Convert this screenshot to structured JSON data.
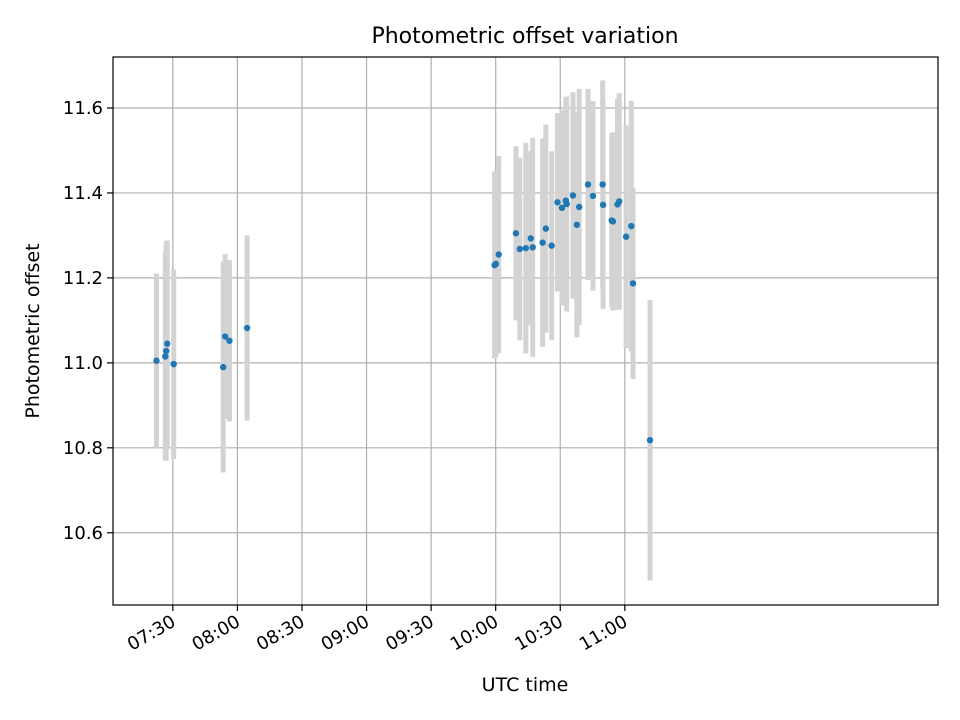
{
  "chart_data": {
    "type": "scatter",
    "title": "Photometric offset variation",
    "xlabel": "UTC time",
    "ylabel": "Photometric offset",
    "grid": true,
    "xlim_minutes": [
      422.2,
      805.5
    ],
    "ylim": [
      10.43,
      11.72
    ],
    "x_ticks": [
      {
        "minutes": 450,
        "label": "07:30"
      },
      {
        "minutes": 480,
        "label": "08:00"
      },
      {
        "minutes": 510,
        "label": "08:30"
      },
      {
        "minutes": 540,
        "label": "09:00"
      },
      {
        "minutes": 570,
        "label": "09:30"
      },
      {
        "minutes": 600,
        "label": "10:00"
      },
      {
        "minutes": 630,
        "label": "10:30"
      },
      {
        "minutes": 660,
        "label": "11:00"
      }
    ],
    "y_ticks": [
      {
        "value": 10.6,
        "label": "10.6"
      },
      {
        "value": 10.8,
        "label": "10.8"
      },
      {
        "value": 11.0,
        "label": "11.0"
      },
      {
        "value": 11.2,
        "label": "11.2"
      },
      {
        "value": 11.4,
        "label": "11.4"
      },
      {
        "value": 11.6,
        "label": "11.6"
      }
    ],
    "marker_color": "#1f77b4",
    "errorbar_color": "#d3d3d3",
    "points": [
      {
        "t": 442.4,
        "y": 11.005,
        "err": 0.205
      },
      {
        "t": 446.5,
        "y": 11.015,
        "err": 0.245
      },
      {
        "t": 446.9,
        "y": 11.028,
        "err": 0.258
      },
      {
        "t": 447.4,
        "y": 11.045,
        "err": 0.243
      },
      {
        "t": 450.4,
        "y": 10.997,
        "err": 0.223
      },
      {
        "t": 473.4,
        "y": 10.99,
        "err": 0.248
      },
      {
        "t": 474.3,
        "y": 11.062,
        "err": 0.194
      },
      {
        "t": 476.3,
        "y": 11.052,
        "err": 0.19
      },
      {
        "t": 484.5,
        "y": 11.082,
        "err": 0.218
      },
      {
        "t": 599.5,
        "y": 11.23,
        "err": 0.22
      },
      {
        "t": 600.1,
        "y": 11.233,
        "err": 0.218
      },
      {
        "t": 601.4,
        "y": 11.255,
        "err": 0.232
      },
      {
        "t": 609.4,
        "y": 11.305,
        "err": 0.205
      },
      {
        "t": 611.2,
        "y": 11.268,
        "err": 0.215
      },
      {
        "t": 614.0,
        "y": 11.27,
        "err": 0.248
      },
      {
        "t": 616.3,
        "y": 11.293,
        "err": 0.205
      },
      {
        "t": 617.2,
        "y": 11.272,
        "err": 0.258
      },
      {
        "t": 621.8,
        "y": 11.283,
        "err": 0.245
      },
      {
        "t": 623.3,
        "y": 11.316,
        "err": 0.245
      },
      {
        "t": 626.0,
        "y": 11.276,
        "err": 0.222
      },
      {
        "t": 628.7,
        "y": 11.378,
        "err": 0.21
      },
      {
        "t": 630.8,
        "y": 11.365,
        "err": 0.23
      },
      {
        "t": 632.6,
        "y": 11.382,
        "err": 0.242
      },
      {
        "t": 633.0,
        "y": 11.374,
        "err": 0.253
      },
      {
        "t": 635.9,
        "y": 11.394,
        "err": 0.243
      },
      {
        "t": 637.7,
        "y": 11.325,
        "err": 0.265
      },
      {
        "t": 638.8,
        "y": 11.367,
        "err": 0.278
      },
      {
        "t": 642.9,
        "y": 11.42,
        "err": 0.225
      },
      {
        "t": 645.2,
        "y": 11.393,
        "err": 0.223
      },
      {
        "t": 649.7,
        "y": 11.42,
        "err": 0.245
      },
      {
        "t": 649.9,
        "y": 11.372,
        "err": 0.245
      },
      {
        "t": 653.9,
        "y": 11.335,
        "err": 0.205
      },
      {
        "t": 654.5,
        "y": 11.333,
        "err": 0.21
      },
      {
        "t": 656.6,
        "y": 11.373,
        "err": 0.248
      },
      {
        "t": 657.4,
        "y": 11.38,
        "err": 0.255
      },
      {
        "t": 660.6,
        "y": 11.297,
        "err": 0.262
      },
      {
        "t": 663.0,
        "y": 11.322,
        "err": 0.295
      },
      {
        "t": 663.8,
        "y": 11.187,
        "err": 0.225
      },
      {
        "t": 671.7,
        "y": 10.818,
        "err": 0.33
      }
    ]
  }
}
